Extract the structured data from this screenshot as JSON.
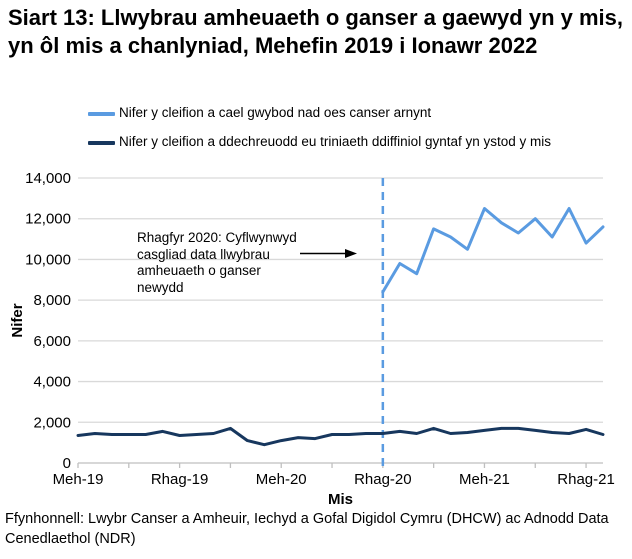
{
  "page": {
    "source": "Ffynhonnell: Lwybr Canser a Amheuir, Iechyd a Gofal Digidol Cymru (DHCW) ac Adnodd Data Cenedlaethol (NDR)"
  },
  "legend": {
    "items": [
      {
        "label": "Nifer y cleifion a cael gwybod nad oes canser arnynt",
        "color": "#5A9BE1"
      },
      {
        "label": "Nifer y cleifion a ddechreuodd eu triniaeth ddiffiniol gyntaf yn ystod y mis",
        "color": "#17375E"
      }
    ]
  },
  "annotation": {
    "text": "Rhagfyr 2020: Cyflwynwyd\ncasgliad data llwybrau\namheuaeth o ganser\nnewydd"
  },
  "chart_data": {
    "type": "line",
    "title": "Siart 13: Llwybrau amheuaeth o ganser a gaewyd yn y mis, yn ôl mis a chanlyniad, Mehefin 2019 i Ionawr 2022",
    "xlabel": "Mis",
    "ylabel": "Nifer",
    "ylim": [
      0,
      14000
    ],
    "ytick_step": 2000,
    "grid": true,
    "legend_position": "top",
    "months": [
      "Meh-19",
      "Gorff-19",
      "Awst-19",
      "Medi-19",
      "Hyd-19",
      "Tach-19",
      "Rhag-19",
      "Ion-20",
      "Chw-20",
      "Maw-20",
      "Ebr-20",
      "Mai-20",
      "Meh-20",
      "Gorff-20",
      "Awst-20",
      "Medi-20",
      "Hyd-20",
      "Tach-20",
      "Rhag-20",
      "Ion-21",
      "Chw-21",
      "Maw-21",
      "Ebr-21",
      "Mai-21",
      "Meh-21",
      "Gorff-21",
      "Awst-21",
      "Medi-21",
      "Hyd-21",
      "Tach-21",
      "Rhag-21",
      "Ion-22"
    ],
    "x_tick_label_indices": [
      0,
      6,
      12,
      18,
      24,
      30
    ],
    "minor_tick_every": 3,
    "series": [
      {
        "name": "Nifer y cleifion a cael gwybod nad oes canser arnynt",
        "color": "#5A9BE1",
        "start_index": 18,
        "values": [
          8400,
          9800,
          9300,
          11500,
          11100,
          10500,
          12500,
          11800,
          11300,
          12000,
          11100,
          12500,
          10800,
          11600
        ]
      },
      {
        "name": "Nifer y cleifion a ddechreuodd eu triniaeth ddiffiniol gyntaf yn ystod y mis",
        "color": "#17375E",
        "start_index": 0,
        "values": [
          1350,
          1450,
          1400,
          1400,
          1400,
          1550,
          1350,
          1400,
          1450,
          1700,
          1100,
          900,
          1100,
          1250,
          1200,
          1400,
          1400,
          1450,
          1450,
          1550,
          1450,
          1700,
          1450,
          1500,
          1600,
          1700,
          1700,
          1600,
          1500,
          1450,
          1650,
          1400
        ]
      }
    ],
    "vline": {
      "month_index": 18,
      "month": "Rhag-20",
      "style": "dashed",
      "color": "#5A9BE1"
    },
    "colors": {
      "grid": "#D9D9D9",
      "axis": "#BFBFBF",
      "text": "#000000"
    }
  }
}
